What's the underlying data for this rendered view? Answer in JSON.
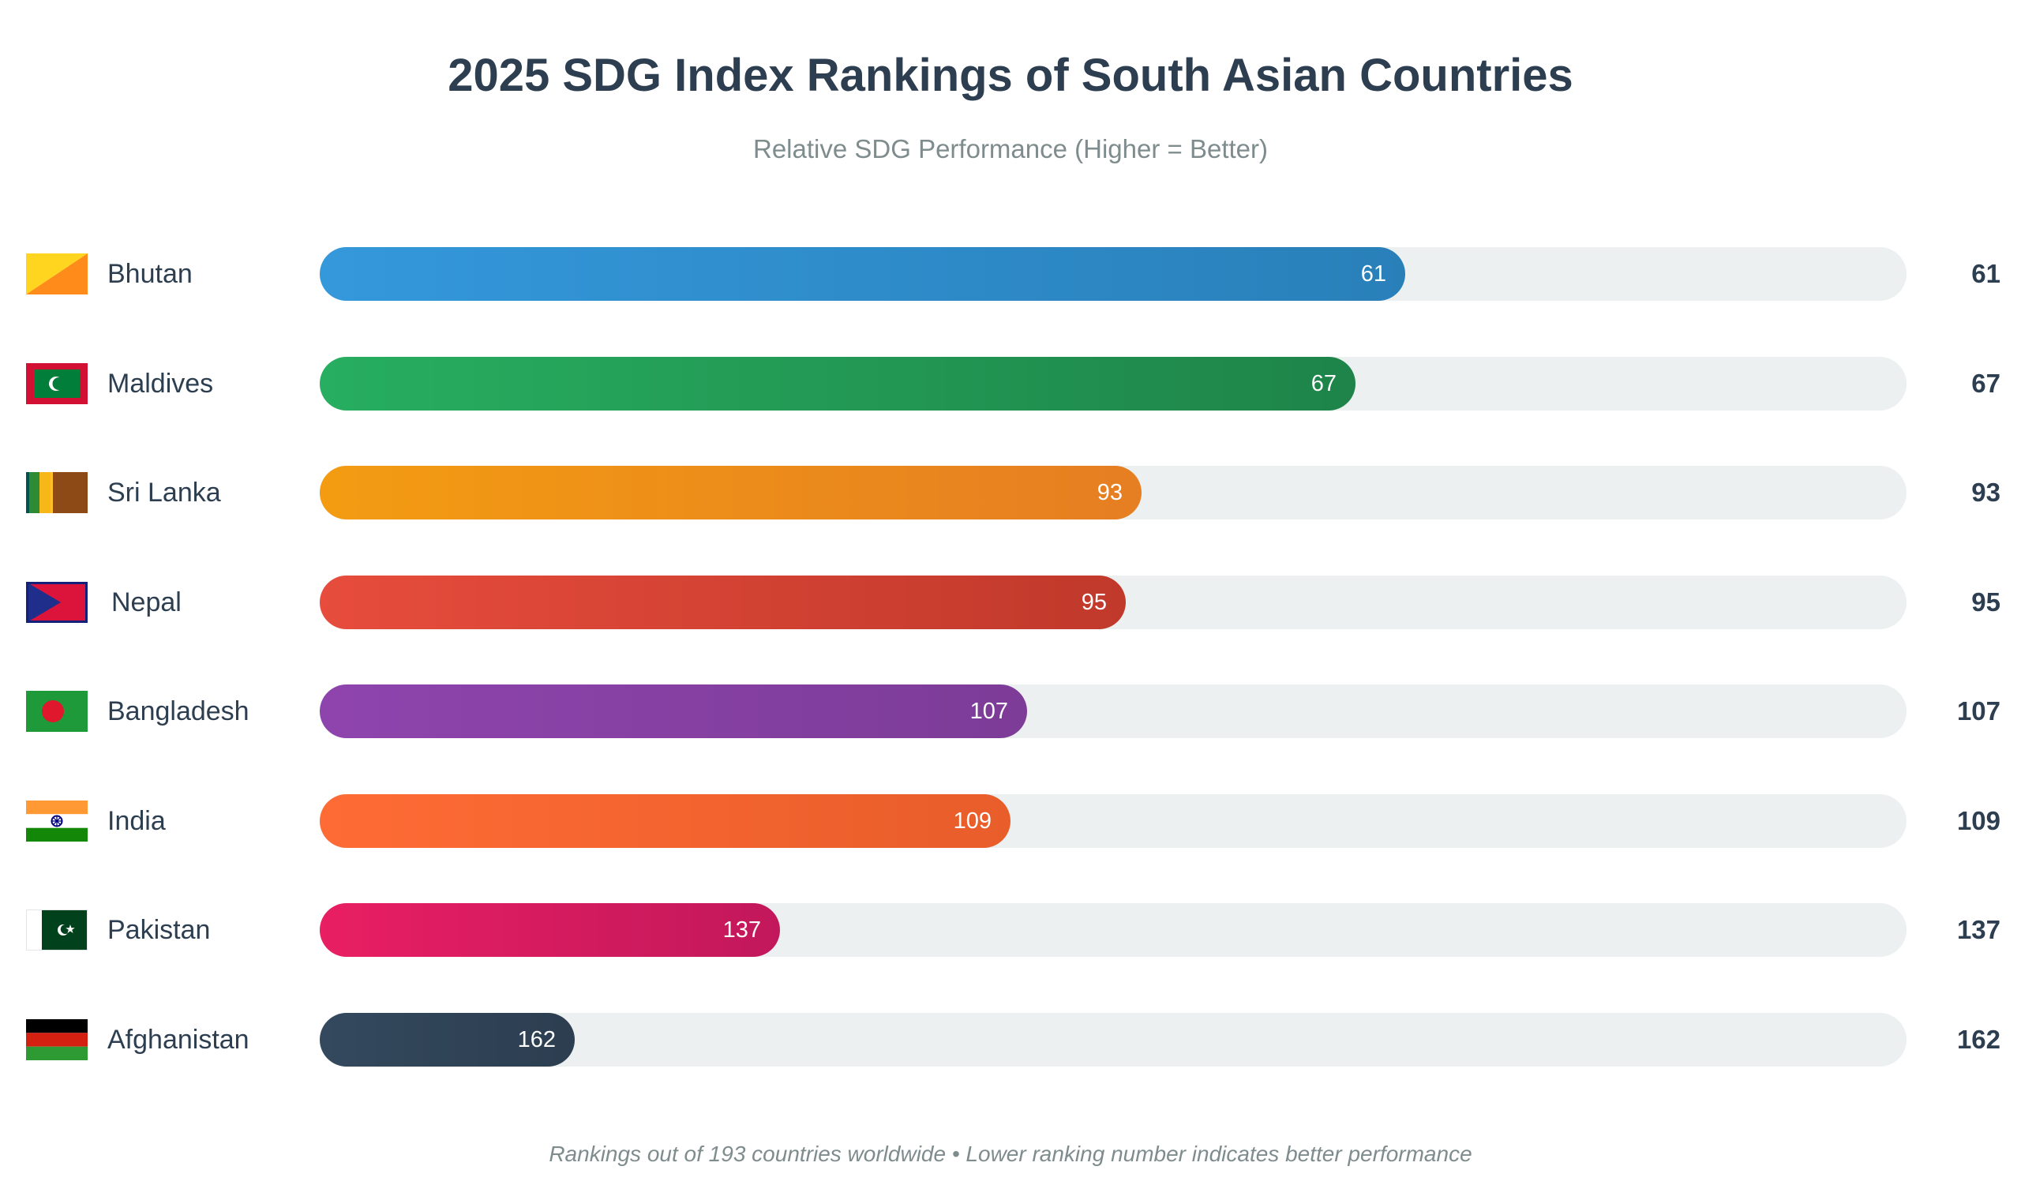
{
  "chart_data": {
    "type": "bar",
    "orientation": "horizontal",
    "title": "2025 SDG Index Rankings of South Asian Countries",
    "subtitle": "Relative SDG Performance (Higher = Better)",
    "footnote": "Rankings out of 193 countries worldwide • Lower ranking number indicates better performance",
    "total_countries": 193,
    "categories": [
      "Bhutan",
      "Maldives",
      "Sri Lanka",
      "Nepal",
      "Bangladesh",
      "India",
      "Pakistan",
      "Afghanistan"
    ],
    "values": [
      61,
      67,
      93,
      95,
      107,
      109,
      137,
      162
    ],
    "rows": [
      {
        "country": "Bhutan",
        "rank": 61,
        "flag": "bhutan-flag-icon",
        "color_start": "#3498db",
        "color_end": "#2980b9"
      },
      {
        "country": "Maldives",
        "rank": 67,
        "flag": "maldives-flag-icon",
        "color_start": "#27ae60",
        "color_end": "#1e8449"
      },
      {
        "country": "Sri Lanka",
        "rank": 93,
        "flag": "sri-lanka-flag-icon",
        "color_start": "#f39c12",
        "color_end": "#e67e22"
      },
      {
        "country": "Nepal",
        "rank": 95,
        "flag": "nepal-flag-icon",
        "color_start": "#e74c3c",
        "color_end": "#c0392b"
      },
      {
        "country": "Bangladesh",
        "rank": 107,
        "flag": "bangladesh-flag-icon",
        "color_start": "#8e44ad",
        "color_end": "#7d3c98"
      },
      {
        "country": "India",
        "rank": 109,
        "flag": "india-flag-icon",
        "color_start": "#ff6b35",
        "color_end": "#e85d2a"
      },
      {
        "country": "Pakistan",
        "rank": 137,
        "flag": "pakistan-flag-icon",
        "color_start": "#e91e63",
        "color_end": "#c2185b"
      },
      {
        "country": "Afghanistan",
        "rank": 162,
        "flag": "afghanistan-flag-icon",
        "color_start": "#34495e",
        "color_end": "#2c3e50"
      }
    ],
    "track_color": "#ecf0f1"
  }
}
